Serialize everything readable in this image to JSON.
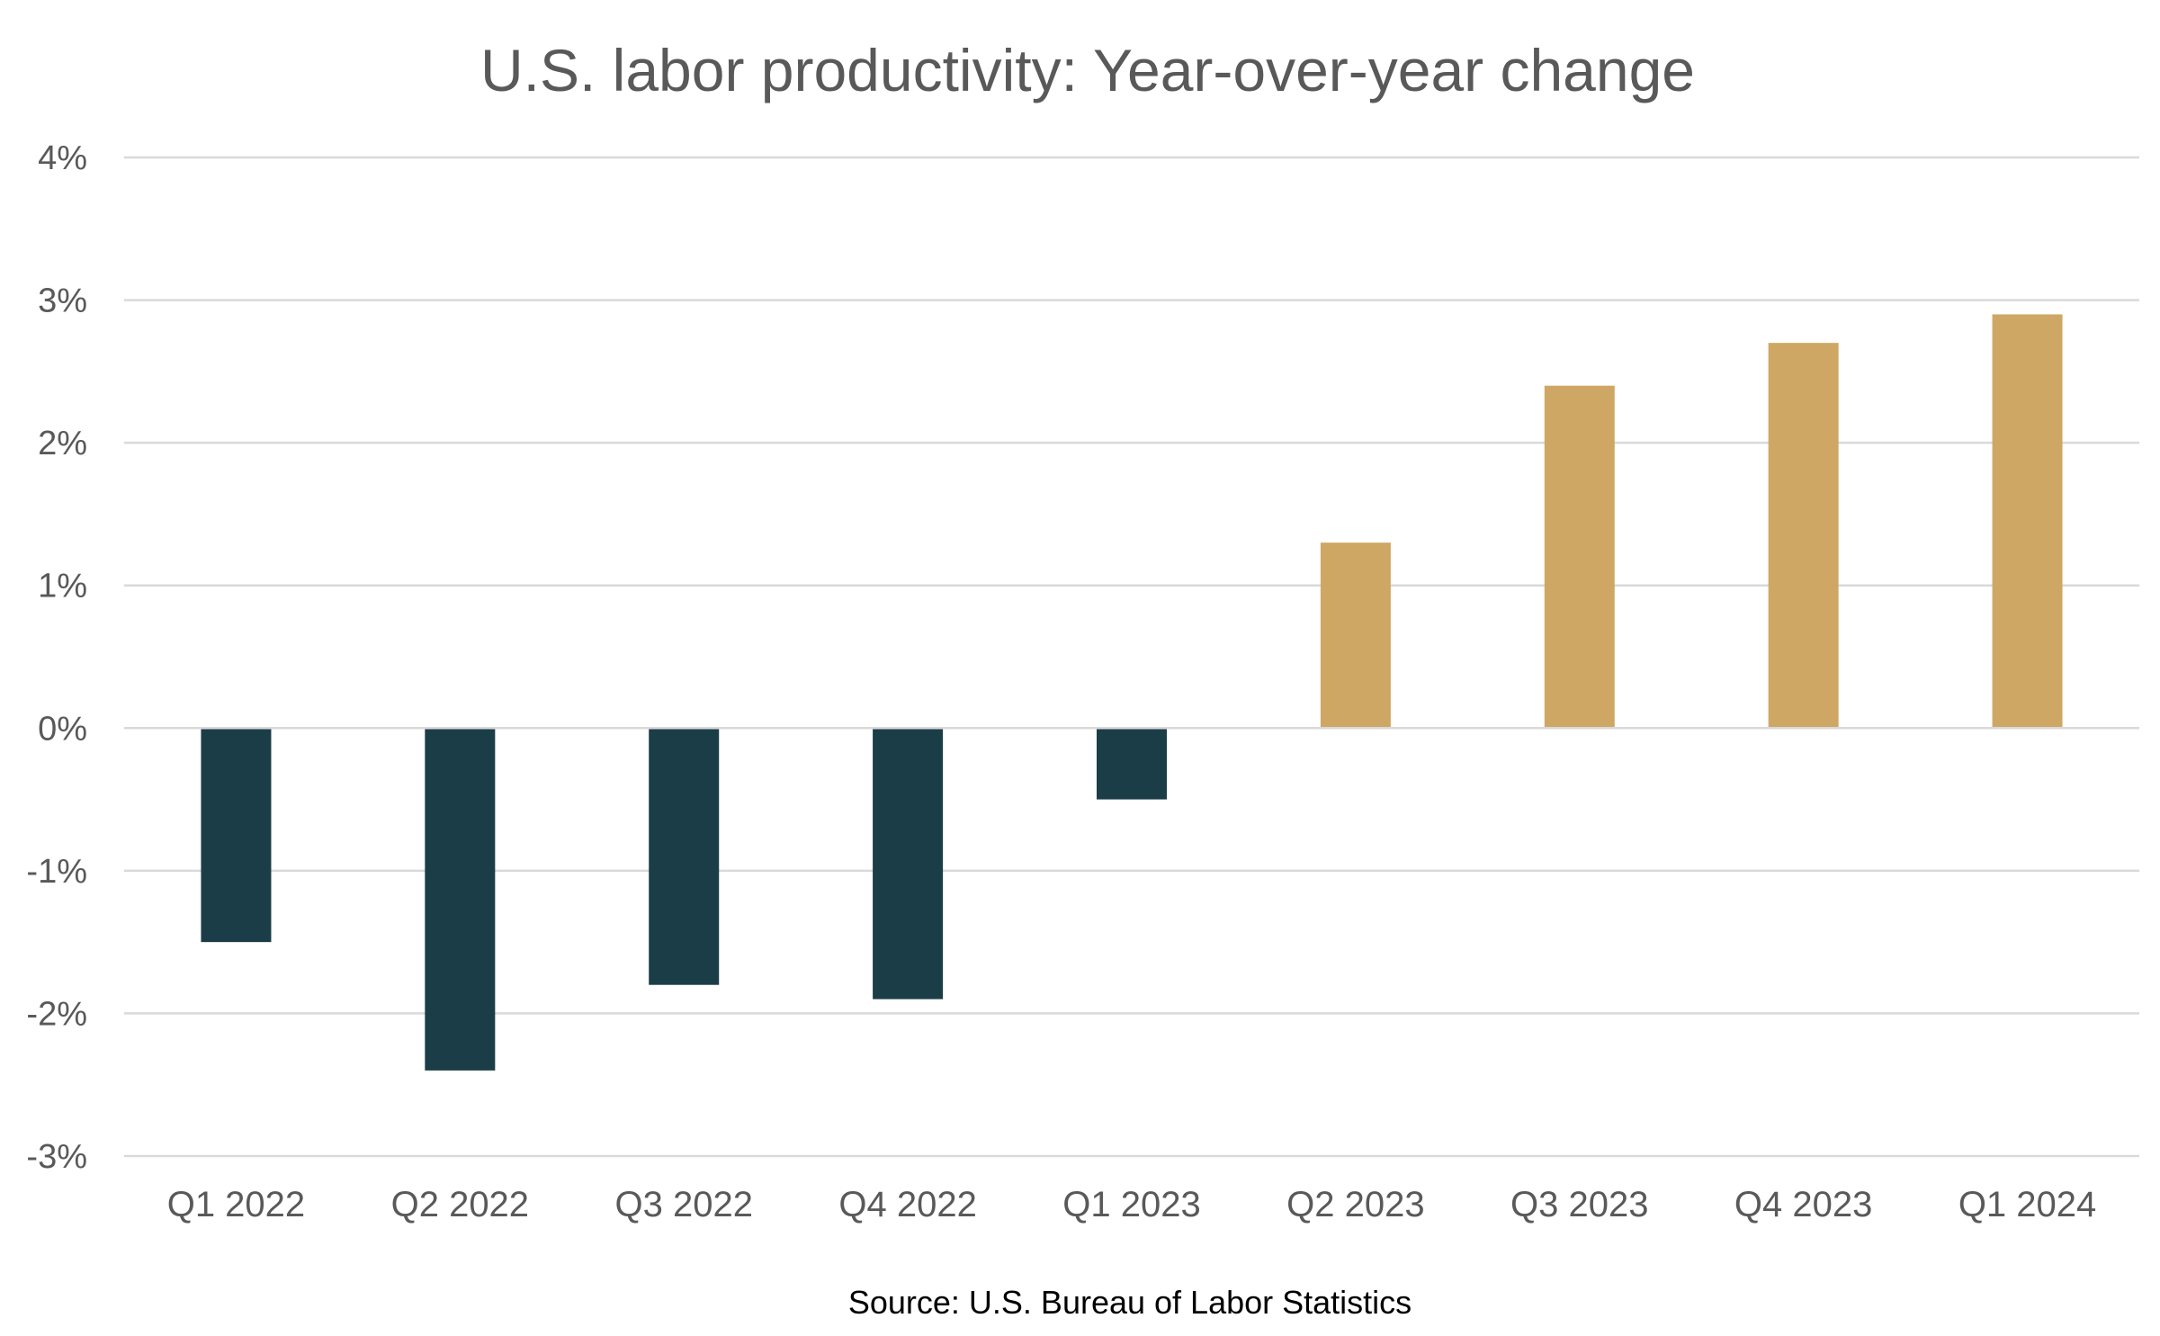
{
  "chart_data": {
    "type": "bar",
    "title": "U.S. labor productivity: Year-over-year change",
    "xlabel": "",
    "ylabel": "",
    "categories": [
      "Q1 2022",
      "Q2 2022",
      "Q3 2022",
      "Q4 2022",
      "Q1 2023",
      "Q2 2023",
      "Q3 2023",
      "Q4 2023",
      "Q1 2024"
    ],
    "values": [
      -1.5,
      -2.4,
      -1.8,
      -1.9,
      -0.5,
      1.3,
      2.4,
      2.7,
      2.9
    ],
    "unit": "%",
    "ylim": [
      -3,
      4
    ],
    "yticks": [
      4,
      3,
      2,
      1,
      0,
      -1,
      -2,
      -3
    ],
    "ytick_labels": [
      "4%",
      "3%",
      "2%",
      "1%",
      "0%",
      "-1%",
      "-2%",
      "-3%"
    ],
    "grid": true,
    "legend": "none",
    "colors": {
      "negative": "#1b3d47",
      "positive": "#cfa764",
      "grid": "#d9d9d9",
      "text": "#595959"
    },
    "source": "Source: U.S. Bureau of Labor Statistics"
  }
}
